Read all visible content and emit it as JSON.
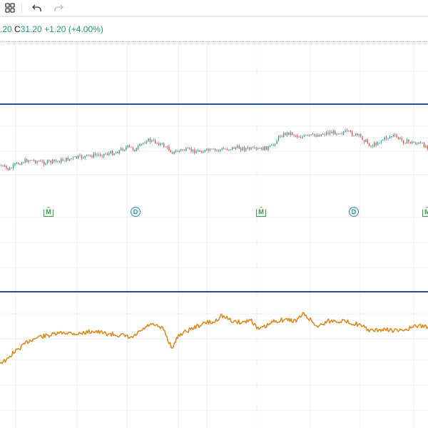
{
  "toolbar": {
    "items": [
      {
        "name": "layout-grid-icon"
      },
      {
        "name": "undo-icon"
      },
      {
        "name": "redo-icon"
      }
    ]
  },
  "legend": {
    "open_partial": ".20",
    "close_label": "C",
    "close_value": "31.20",
    "change": "+1.20",
    "change_percent": "(+4.00%)"
  },
  "markers": [
    {
      "label": "M",
      "kind": "m"
    },
    {
      "label": "D",
      "kind": "d"
    },
    {
      "label": "M",
      "kind": "m"
    },
    {
      "label": "D",
      "kind": "d"
    },
    {
      "label": "M",
      "kind": "m"
    }
  ],
  "colors": {
    "up": "#26a69a",
    "down": "#ef5350",
    "line": "#e08a1e",
    "pane_border": "#264e9c",
    "legend_text": "#1e9e74"
  }
}
